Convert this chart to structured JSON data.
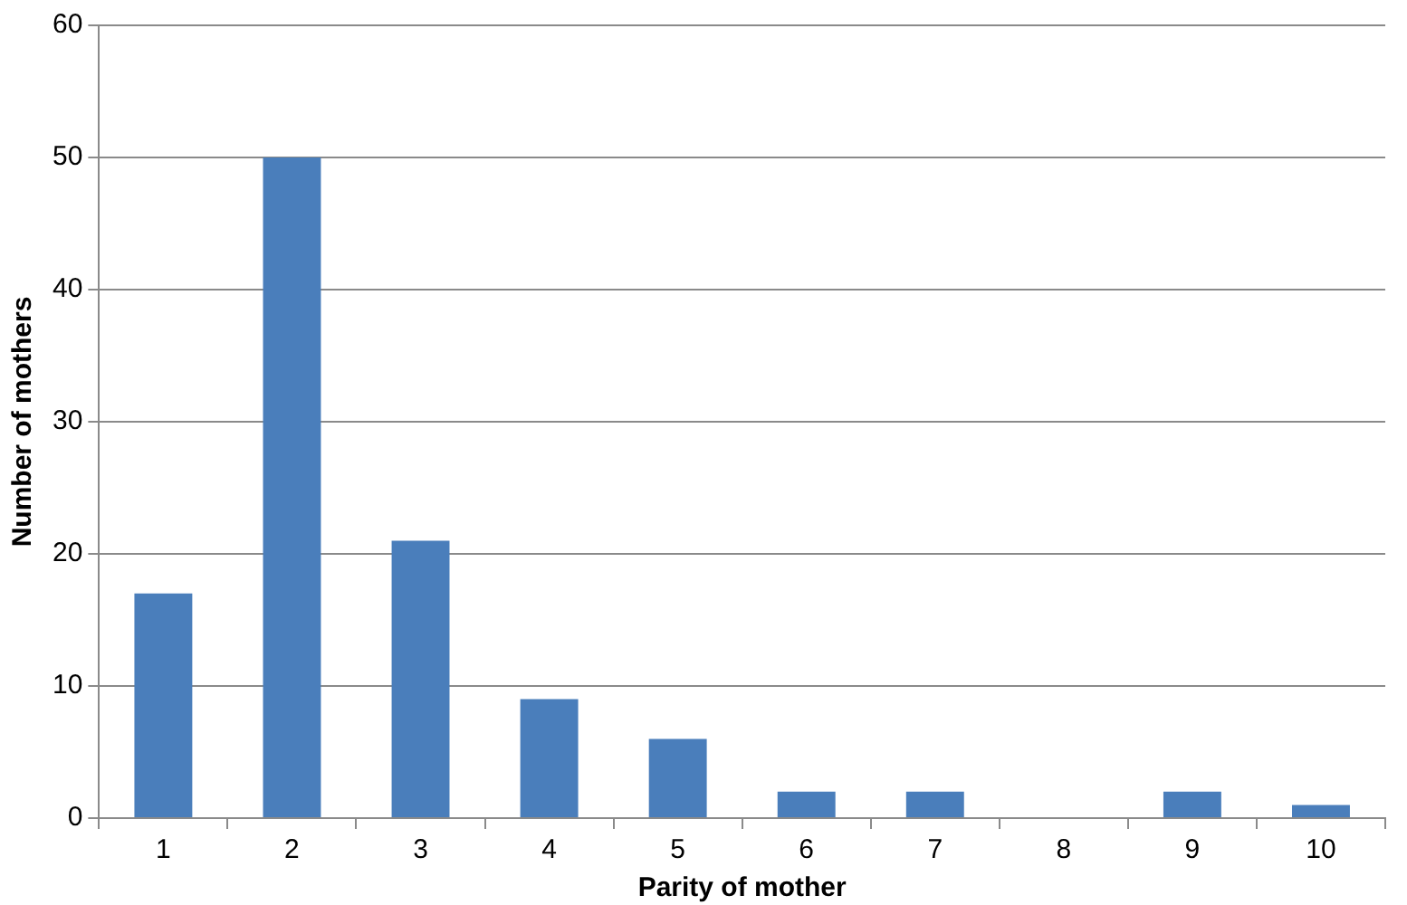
{
  "chart_data": {
    "type": "bar",
    "xlabel": "Parity of mother",
    "ylabel": "Number of mothers",
    "categories": [
      "1",
      "2",
      "3",
      "4",
      "5",
      "6",
      "7",
      "8",
      "9",
      "10"
    ],
    "values": [
      17,
      50,
      21,
      9,
      6,
      2,
      2,
      0,
      2,
      1
    ],
    "color": "#4a7ebb",
    "ylim": [
      0,
      60
    ],
    "yticks": [
      0,
      10,
      20,
      30,
      40,
      50,
      60
    ],
    "grid": "y",
    "legend": false
  }
}
